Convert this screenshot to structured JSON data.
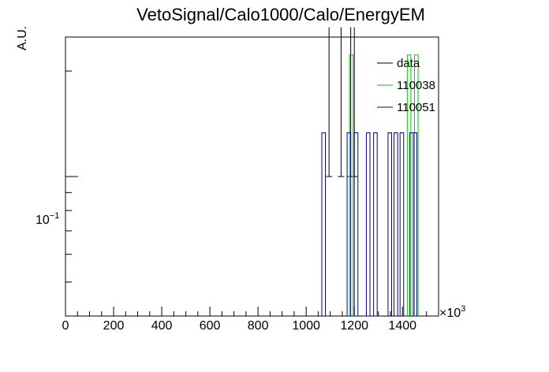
{
  "chart_data": {
    "type": "histogram",
    "title": "VetoSignal/Calo1000/Calo/EnergyEM",
    "ylabel": "A.U.",
    "xlabel": "",
    "x_multiplier_label": "×10",
    "x_multiplier_exp": "3",
    "xlim": [
      0,
      1550
    ],
    "ylim": [
      0.04,
      0.25
    ],
    "y_scale": "log",
    "x_ticks": [
      0,
      200,
      400,
      600,
      800,
      1000,
      1200,
      1400
    ],
    "y_tick_label": "10",
    "y_tick_exp": "−1",
    "legend_position": "top-right",
    "series": [
      {
        "name": "data",
        "color": "#000000",
        "style": "points",
        "points": [
          {
            "x": 1095,
            "y": 0.1,
            "err": [
              0.0,
              0.1667
            ]
          },
          {
            "x": 1145,
            "y": 0.1,
            "err": [
              0.0,
              0.1667
            ]
          },
          {
            "x": 1185,
            "y": 0.1,
            "err": [
              0.0,
              0.1667
            ]
          },
          {
            "x": 1200,
            "y": 0.1,
            "err": [
              0.0,
              0.1667
            ]
          }
        ]
      },
      {
        "name": "110038",
        "color": "#00cc00",
        "style": "step",
        "bins": [
          {
            "x0": 1180,
            "x1": 1195,
            "y": 0.2222
          },
          {
            "x0": 1420,
            "x1": 1435,
            "y": 0.2222
          },
          {
            "x0": 1450,
            "x1": 1465,
            "y": 0.2222
          }
        ]
      },
      {
        "name": "110051",
        "color": "#00008b",
        "style": "step",
        "bins": [
          {
            "x0": 1065,
            "x1": 1080,
            "y": 0.1333
          },
          {
            "x0": 1170,
            "x1": 1185,
            "y": 0.1333
          },
          {
            "x0": 1200,
            "x1": 1215,
            "y": 0.1333
          },
          {
            "x0": 1250,
            "x1": 1265,
            "y": 0.1333
          },
          {
            "x0": 1280,
            "x1": 1295,
            "y": 0.1333
          },
          {
            "x0": 1340,
            "x1": 1355,
            "y": 0.1333
          },
          {
            "x0": 1365,
            "x1": 1380,
            "y": 0.1333
          },
          {
            "x0": 1390,
            "x1": 1405,
            "y": 0.1333
          },
          {
            "x0": 1430,
            "x1": 1445,
            "y": 0.1333
          },
          {
            "x0": 1445,
            "x1": 1460,
            "y": 0.1333
          }
        ]
      }
    ]
  }
}
